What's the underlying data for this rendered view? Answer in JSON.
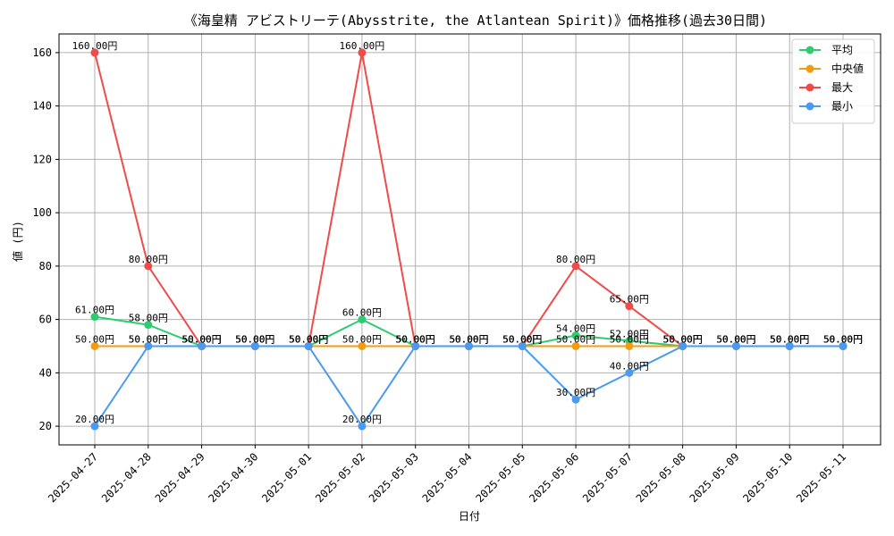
{
  "chart_data": {
    "type": "line",
    "title": "《海皇精 アビストリーテ(Abysstrite, the Atlantean Spirit)》価格推移(過去30日間)",
    "xlabel": "日付",
    "ylabel": "値 (円)",
    "x": [
      "2025-04-27",
      "2025-04-28",
      "2025-04-29",
      "2025-04-30",
      "2025-05-01",
      "2025-05-02",
      "2025-05-03",
      "2025-05-04",
      "2025-05-05",
      "2025-05-06",
      "2025-05-07",
      "2025-05-08",
      "2025-05-09",
      "2025-05-10",
      "2025-05-11"
    ],
    "ylim": [
      13,
      167
    ],
    "yticks": [
      20,
      40,
      60,
      80,
      100,
      120,
      140,
      160
    ],
    "grid": true,
    "legend_position": "top-right",
    "label_suffix": "円",
    "series": [
      {
        "name": "平均",
        "color": "#2ecc71",
        "values": [
          61,
          58,
          50,
          50,
          50,
          60,
          50,
          50,
          50,
          54,
          52,
          50,
          50,
          50,
          50
        ]
      },
      {
        "name": "中央値",
        "color": "#f39c12",
        "values": [
          50,
          50,
          50,
          50,
          50,
          50,
          50,
          50,
          50,
          50,
          50,
          50,
          50,
          50,
          50
        ]
      },
      {
        "name": "最大",
        "color": "#ef4b4b",
        "values": [
          160,
          80,
          50,
          50,
          50,
          160,
          50,
          50,
          50,
          80,
          65,
          50,
          50,
          50,
          50
        ]
      },
      {
        "name": "最小",
        "color": "#4a9af0",
        "values": [
          20,
          50,
          50,
          50,
          50,
          20,
          50,
          50,
          50,
          30,
          40,
          50,
          50,
          50,
          50
        ]
      }
    ]
  }
}
